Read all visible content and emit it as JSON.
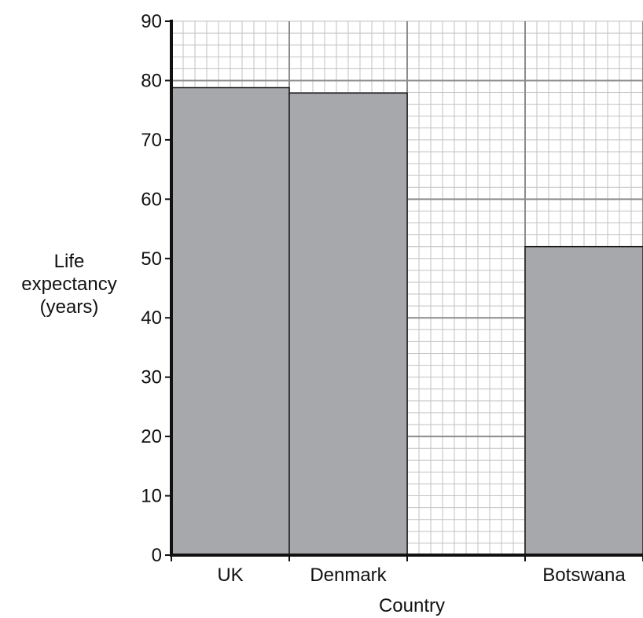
{
  "chart_data": {
    "type": "bar",
    "categories": [
      "UK",
      "Denmark",
      "",
      "Botswana"
    ],
    "values": [
      78.8,
      77.9,
      null,
      52
    ],
    "title": "",
    "xlabel": "Country",
    "ylabel_lines": [
      "Life",
      "expectancy",
      "(years)"
    ],
    "ylim": [
      0,
      90
    ],
    "y_ticks": [
      "0",
      "10",
      "20",
      "30",
      "40",
      "50",
      "60",
      "70",
      "80",
      "90"
    ],
    "grid": true,
    "legend": "none"
  },
  "colors": {
    "bar_fill": "#a7a8ab",
    "bar_stroke": "#1a1a1a",
    "grid_minor": "#c2c2c2",
    "grid_major": "#8c8c8c",
    "axis": "#111111"
  }
}
